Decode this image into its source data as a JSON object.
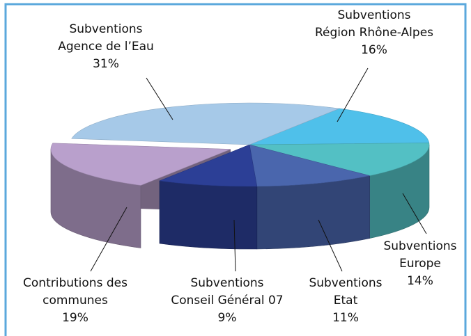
{
  "chart_data": {
    "type": "pie3d",
    "categories": [
      [
        "Subventions",
        "Région Rhône-Alpes"
      ],
      [
        "Subventions",
        "Europe"
      ],
      [
        "Subventions",
        "Etat"
      ],
      [
        "Subventions",
        "Conseil Général 07"
      ],
      [
        "Contributions des",
        "communes"
      ],
      [
        "Subventions",
        "Agence de l’Eau"
      ]
    ],
    "values": [
      16,
      14,
      11,
      9,
      19,
      31
    ],
    "value_labels": [
      "16%",
      "14%",
      "11%",
      "9%",
      "19%",
      "31%"
    ],
    "colors": [
      "#4fc0ea",
      "#53c0c4",
      "#4a66ad",
      "#2c3f96",
      "#b9a0cc",
      "#a6c9e8"
    ],
    "exploded": [
      4
    ]
  }
}
